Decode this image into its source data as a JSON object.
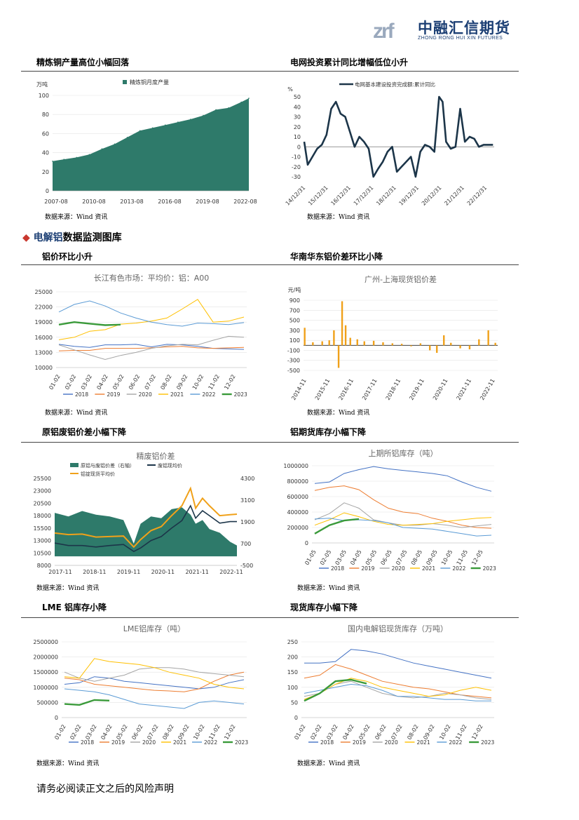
{
  "header": {
    "logo_mark": "zrf",
    "logo_cn": "中融汇信期货",
    "logo_en": "ZHONG RONG HUI XIN FUTURES"
  },
  "section": {
    "icon": "diamond-bullet-icon",
    "prefix": "电解铝",
    "suffix": "数据监测图库"
  },
  "footer": {
    "text": "请务必阅读正文之后的风险声明"
  },
  "colors": {
    "teal": "#2e7a6a",
    "navy": "#1c3549",
    "orange": "#f0a11a",
    "s2018": "#4472c4",
    "s2019": "#ed7d31",
    "s2020": "#a5a5a5",
    "s2021": "#ffc000",
    "s2022": "#5b9bd5",
    "s2023": "#3a9a3a"
  },
  "panels": [
    {
      "title": "精炼铜产量高位小幅回落",
      "source": "数据来源：Wind 资讯"
    },
    {
      "title": "电网投资累计同比增幅低位小升",
      "source": "数据来源：Wind 资讯"
    },
    {
      "title": "铝价环比小升",
      "source": "数据来源：Wind 资讯"
    },
    {
      "title": "华南华东铝价差环比小降",
      "source": "数据来源：Wind 资讯"
    },
    {
      "title": "原铝废铝价差小幅下降",
      "source": "数据来源：Wind 资讯"
    },
    {
      "title": "铝期货库存小幅下降",
      "source": "数据来源：Wind 资讯"
    },
    {
      "title": "LME 铝库存小降",
      "source": "数据来源：Wind 资讯"
    },
    {
      "title": "现货库存小幅下降",
      "source": "数据来源：Wind 资讯"
    }
  ],
  "chart_data": [
    {
      "type": "area",
      "title": "",
      "unit": "万吨",
      "legend": [
        "精炼铜月度产量"
      ],
      "x_ticks": [
        "2007-08",
        "2010-08",
        "2013-08",
        "2016-08",
        "2019-08",
        "2022-08"
      ],
      "ylim": [
        0,
        100
      ],
      "y_ticks": [
        0,
        20,
        40,
        60,
        80,
        100
      ],
      "x": [
        2007.6,
        2008.5,
        2009.5,
        2010.5,
        2011.5,
        2012.5,
        2013.5,
        2014.5,
        2015.5,
        2016.5,
        2017.5,
        2018.5,
        2019.5,
        2020.5,
        2021.5,
        2022.5,
        2023.1
      ],
      "values": [
        31,
        33,
        35,
        38,
        44,
        49,
        56,
        63,
        66,
        69,
        72,
        75,
        79,
        85,
        87,
        93,
        97
      ]
    },
    {
      "type": "line",
      "title": "",
      "unit": "%",
      "legend": [
        "电网基本建设投资完成额:累计同比"
      ],
      "x_ticks": [
        "14/12/31",
        "15/12/31",
        "16/12/31",
        "17/12/31",
        "18/12/31",
        "19/12/31",
        "20/12/31",
        "21/12/31",
        "22/12/31"
      ],
      "ylim": [
        -30,
        50
      ],
      "y_ticks": [
        -30,
        -20,
        -10,
        0,
        10,
        20,
        30,
        40,
        50
      ],
      "x": [
        2014.95,
        2015.1,
        2015.3,
        2015.5,
        2015.7,
        2015.9,
        2016.1,
        2016.3,
        2016.5,
        2016.7,
        2016.9,
        2017.1,
        2017.3,
        2017.5,
        2017.7,
        2017.9,
        2018.1,
        2018.3,
        2018.5,
        2018.7,
        2018.9,
        2019.1,
        2019.3,
        2019.5,
        2019.7,
        2019.9,
        2020.1,
        2020.3,
        2020.5,
        2020.7,
        2020.85,
        2021.0,
        2021.2,
        2021.4,
        2021.6,
        2021.8,
        2022.0,
        2022.2,
        2022.4,
        2022.6,
        2022.8,
        2023.0
      ],
      "values": [
        5,
        -18,
        -10,
        -2,
        2,
        12,
        38,
        45,
        33,
        30,
        15,
        0,
        10,
        5,
        -2,
        -30,
        -22,
        -15,
        -5,
        0,
        -25,
        -20,
        -15,
        -10,
        -30,
        -5,
        2,
        0,
        -5,
        50,
        45,
        5,
        -2,
        0,
        38,
        5,
        10,
        8,
        0,
        2,
        2,
        2
      ]
    },
    {
      "type": "line",
      "title": "长江有色市场：平均价：铝：A00",
      "x_ticks": [
        "01-02",
        "02-02",
        "03-02",
        "04-02",
        "05-02",
        "06-02",
        "07-02",
        "08-02",
        "09-02",
        "10-02",
        "11-02",
        "12-02"
      ],
      "ylim": [
        10000,
        25000
      ],
      "y_ticks": [
        10000,
        13000,
        16000,
        19000,
        22000,
        25000
      ],
      "series": [
        {
          "name": "2018",
          "values": [
            14600,
            14200,
            14000,
            14500,
            14500,
            14600,
            14100,
            14600,
            14500,
            14200,
            13800,
            13700,
            13600
          ]
        },
        {
          "name": "2019",
          "values": [
            13300,
            13400,
            13400,
            13800,
            13800,
            13800,
            13900,
            14100,
            14200,
            13900,
            13800,
            13900,
            14000
          ]
        },
        {
          "name": "2020",
          "values": [
            14500,
            13500,
            12500,
            11600,
            12400,
            13000,
            13800,
            14300,
            14600,
            14500,
            15400,
            16200,
            16000
          ]
        },
        {
          "name": "2021",
          "values": [
            15500,
            16000,
            17200,
            17500,
            18600,
            18800,
            19200,
            19800,
            21600,
            23500,
            19000,
            19200,
            20000
          ]
        },
        {
          "name": "2022",
          "values": [
            21000,
            22500,
            23200,
            22200,
            20800,
            19800,
            19000,
            18500,
            18200,
            18800,
            18700,
            18500,
            18900
          ]
        },
        {
          "name": "2023",
          "values": [
            18500,
            19000,
            18700,
            18400,
            18500
          ]
        }
      ]
    },
    {
      "type": "bar",
      "title": "广州-上海现货铝价差",
      "unit": "元/吨",
      "x_ticks": [
        "2014-11",
        "2015-11",
        "2016-11",
        "2017-11",
        "2018-11",
        "2019-11",
        "2020-11",
        "2021-11",
        "2022-11"
      ],
      "ylim": [
        -500,
        900
      ],
      "y_ticks": [
        -500,
        -300,
        -100,
        100,
        300,
        500,
        700,
        900
      ],
      "x": [
        2014.85,
        2015.2,
        2015.6,
        2015.9,
        2016.1,
        2016.3,
        2016.45,
        2016.6,
        2016.8,
        2017.1,
        2017.4,
        2017.8,
        2018.2,
        2018.6,
        2019.0,
        2019.4,
        2019.8,
        2020.2,
        2020.5,
        2020.8,
        2021.1,
        2021.5,
        2021.9,
        2022.3,
        2022.7,
        2023.0
      ],
      "values": [
        350,
        60,
        80,
        100,
        300,
        -450,
        880,
        400,
        150,
        120,
        80,
        90,
        60,
        40,
        30,
        -20,
        40,
        -100,
        -150,
        200,
        50,
        -60,
        -80,
        120,
        300,
        50
      ]
    },
    {
      "type": "area",
      "title": "精废铝价差",
      "legend": [
        "原铝与废铝价差（右轴）",
        "废铝现均价",
        "铝锭现货平均价"
      ],
      "x_ticks": [
        "2017-11",
        "2018-11",
        "2019-11",
        "2020-11",
        "2021-11",
        "2022-11"
      ],
      "ylim": [
        8000,
        25500
      ],
      "y_ticks": [
        8000,
        10500,
        13000,
        15500,
        18000,
        20500,
        23000,
        25500
      ],
      "y2lim": [
        -500,
        4300
      ],
      "y2_ticks": [
        -500,
        700,
        1900,
        3100,
        4300
      ],
      "x": [
        2017.8,
        2018.2,
        2018.6,
        2019.0,
        2019.4,
        2019.8,
        2020.1,
        2020.3,
        2020.6,
        2020.9,
        2021.2,
        2021.5,
        2021.75,
        2021.9,
        2022.1,
        2022.3,
        2022.6,
        2022.9,
        2023.1
      ],
      "series": [
        {
          "name": "原铝与废铝价差（右轴）",
          "values": [
            2400,
            2200,
            2500,
            2300,
            2200,
            2000,
            700,
            1800,
            2200,
            2100,
            2600,
            2700,
            2300,
            1800,
            2000,
            1500,
            1300,
            800,
            600
          ]
        },
        {
          "name": "废铝现均价",
          "values": [
            12500,
            12000,
            12000,
            11700,
            12000,
            12200,
            10800,
            11500,
            13000,
            13800,
            15500,
            17000,
            20000,
            17500,
            19000,
            18000,
            16500,
            16800,
            16800
          ]
        },
        {
          "name": "铝锭现货平均价",
          "values": [
            14500,
            14200,
            14300,
            13700,
            13800,
            13900,
            11700,
            13200,
            15000,
            15800,
            18000,
            20000,
            23500,
            19500,
            21500,
            20000,
            18000,
            18200,
            18300
          ]
        }
      ]
    },
    {
      "type": "line",
      "title": "上期所铝库存（吨）",
      "x_ticks": [
        "01-05",
        "02-05",
        "03-05",
        "04-05",
        "05-05",
        "06-05",
        "07-05",
        "08-05",
        "09-05",
        "10-05",
        "11-05",
        "12-05"
      ],
      "ylim": [
        0,
        1000000
      ],
      "y_ticks": [
        0,
        200000,
        400000,
        600000,
        800000,
        1000000
      ],
      "series": [
        {
          "name": "2018",
          "values": [
            770000,
            790000,
            900000,
            950000,
            990000,
            960000,
            940000,
            920000,
            900000,
            870000,
            790000,
            720000,
            670000
          ]
        },
        {
          "name": "2019",
          "values": [
            680000,
            720000,
            740000,
            690000,
            560000,
            450000,
            400000,
            380000,
            320000,
            280000,
            230000,
            200000,
            190000
          ]
        },
        {
          "name": "2020",
          "values": [
            300000,
            380000,
            520000,
            450000,
            300000,
            260000,
            230000,
            230000,
            250000,
            230000,
            200000,
            220000,
            240000
          ]
        },
        {
          "name": "2021",
          "values": [
            230000,
            300000,
            390000,
            340000,
            280000,
            240000,
            230000,
            240000,
            250000,
            280000,
            300000,
            320000,
            330000
          ]
        },
        {
          "name": "2022",
          "values": [
            310000,
            320000,
            290000,
            300000,
            290000,
            260000,
            200000,
            190000,
            180000,
            150000,
            120000,
            90000,
            100000
          ]
        },
        {
          "name": "2023",
          "values": [
            120000,
            230000,
            290000,
            310000
          ]
        }
      ]
    },
    {
      "type": "line",
      "title": "LME铝库存（吨）",
      "x_ticks": [
        "01-02",
        "02-02",
        "03-02",
        "04-02",
        "05-02",
        "06-02",
        "07-02",
        "08-02",
        "09-02",
        "10-02",
        "11-02",
        "12-02"
      ],
      "ylim": [
        0,
        2500000
      ],
      "y_ticks": [
        0,
        500000,
        1000000,
        1500000,
        2000000,
        2500000
      ],
      "series": [
        {
          "name": "2018",
          "values": [
            1100000,
            1150000,
            1350000,
            1300000,
            1200000,
            1150000,
            1100000,
            1050000,
            1000000,
            950000,
            1000000,
            1150000,
            1250000
          ]
        },
        {
          "name": "2019",
          "values": [
            1300000,
            1250000,
            1100000,
            1050000,
            1000000,
            950000,
            900000,
            880000,
            850000,
            950000,
            1200000,
            1400000,
            1500000
          ]
        },
        {
          "name": "2020",
          "values": [
            1500000,
            1300000,
            1200000,
            1300000,
            1400000,
            1600000,
            1650000,
            1650000,
            1600000,
            1500000,
            1450000,
            1400000,
            1350000
          ]
        },
        {
          "name": "2021",
          "values": [
            1350000,
            1300000,
            1950000,
            1850000,
            1800000,
            1750000,
            1650000,
            1500000,
            1400000,
            1300000,
            1100000,
            1000000,
            950000
          ]
        },
        {
          "name": "2022",
          "values": [
            950000,
            900000,
            850000,
            750000,
            600000,
            450000,
            400000,
            350000,
            300000,
            500000,
            550000,
            500000,
            450000
          ]
        },
        {
          "name": "2023",
          "values": [
            450000,
            420000,
            580000,
            560000
          ]
        }
      ]
    },
    {
      "type": "line",
      "title": "国内电解铝现货库存（万吨）",
      "x_ticks": [
        "01-02",
        "02-02",
        "03-02",
        "04-02",
        "05-02",
        "06-02",
        "07-02",
        "08-02",
        "09-02",
        "10-02",
        "11-02",
        "12-02"
      ],
      "ylim": [
        0,
        250
      ],
      "y_ticks": [
        0,
        50,
        100,
        150,
        200,
        250
      ],
      "series": [
        {
          "name": "2018",
          "values": [
            180,
            180,
            185,
            225,
            220,
            210,
            195,
            180,
            170,
            160,
            150,
            140,
            130
          ]
        },
        {
          "name": "2019",
          "values": [
            130,
            140,
            175,
            160,
            140,
            120,
            110,
            100,
            95,
            85,
            75,
            70,
            65
          ]
        },
        {
          "name": "2020",
          "values": [
            70,
            80,
            110,
            120,
            100,
            80,
            70,
            65,
            70,
            80,
            75,
            65,
            60
          ]
        },
        {
          "name": "2021",
          "values": [
            60,
            80,
            110,
            130,
            120,
            100,
            90,
            80,
            70,
            75,
            90,
            100,
            90
          ]
        },
        {
          "name": "2022",
          "values": [
            80,
            90,
            100,
            110,
            105,
            90,
            70,
            70,
            65,
            60,
            60,
            55,
            55
          ]
        },
        {
          "name": "2023",
          "values": [
            55,
            80,
            120,
            125,
            112
          ]
        }
      ]
    }
  ]
}
